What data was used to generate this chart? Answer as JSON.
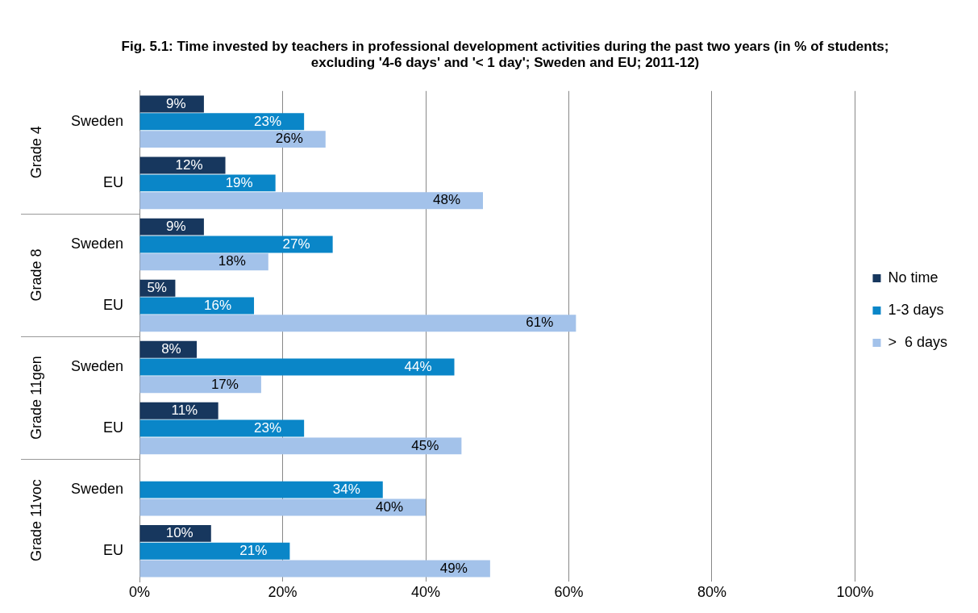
{
  "chart_data": {
    "type": "bar",
    "orientation": "horizontal",
    "title": "Fig. 5.1: Time invested by teachers in professional development activities during the past two years (in % of students; excluding '4-6 days' and '< 1 day'; Sweden and EU; 2011-12)",
    "categories": [
      "Sweden",
      "EU",
      "Sweden",
      "EU",
      "Sweden",
      "EU",
      "Sweden",
      "EU"
    ],
    "annotations": [
      "Grade 4",
      "Grade 8",
      "Grade 11gen",
      "Grade 11voc"
    ],
    "series": [
      {
        "name": "No time",
        "color": "#17375e",
        "values": [
          9,
          12,
          9,
          5,
          8,
          11,
          null,
          10
        ],
        "value_labels": [
          "9%",
          "12%",
          "9%",
          "5%",
          "8%",
          "11%",
          null,
          "10%"
        ]
      },
      {
        "name": "1-3 days",
        "color": "#0a86c8",
        "values": [
          23,
          19,
          27,
          16,
          44,
          23,
          34,
          21
        ],
        "value_labels": [
          "23%",
          "19%",
          "27%",
          "16%",
          "44%",
          "23%",
          "34%",
          "21%"
        ]
      },
      {
        "name": ">  6 days",
        "color": "#a3c2ea",
        "values": [
          26,
          48,
          18,
          61,
          17,
          45,
          40,
          49
        ],
        "value_labels": [
          "26%",
          "48%",
          "18%",
          "61%",
          "17%",
          "45%",
          "40%",
          "49%"
        ]
      }
    ],
    "xlim": [
      0,
      100
    ],
    "xticks": [
      {
        "value": 0,
        "label": "0%"
      },
      {
        "value": 20,
        "label": "20%"
      },
      {
        "value": 40,
        "label": "40%"
      },
      {
        "value": 60,
        "label": "60%"
      },
      {
        "value": 80,
        "label": "80%"
      },
      {
        "value": 100,
        "label": "100%"
      }
    ],
    "grid": "x",
    "legend": "right"
  }
}
